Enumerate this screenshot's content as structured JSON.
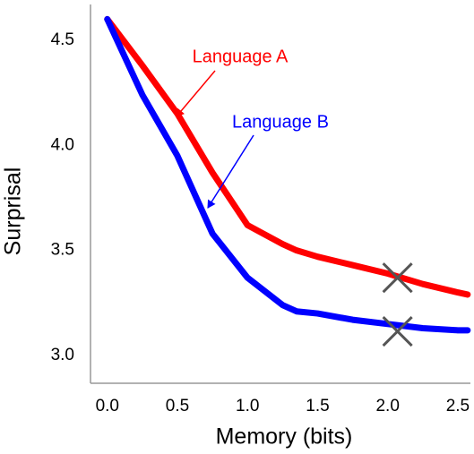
{
  "chart_data": {
    "type": "line",
    "x_label": "Memory (bits)",
    "y_label": "Surprisal",
    "xlim": [
      -0.12,
      2.59
    ],
    "ylim": [
      2.868,
      4.67
    ],
    "xticks": [
      {
        "value": 0,
        "label": "0.0"
      },
      {
        "value": 0.5,
        "label": "0.5"
      },
      {
        "value": 1,
        "label": "1.0"
      },
      {
        "value": 1.5,
        "label": "1.5"
      },
      {
        "value": 2,
        "label": "2.0"
      },
      {
        "value": 2.5,
        "label": "2.5"
      }
    ],
    "yticks": [
      {
        "value": 3,
        "label": "3.0"
      },
      {
        "value": 3.5,
        "label": "3.5"
      },
      {
        "value": 4,
        "label": "4.0"
      },
      {
        "value": 4.5,
        "label": "4.5"
      }
    ],
    "grid": false,
    "x": [
      0,
      0.25,
      0.5,
      0.75,
      1.0,
      1.25,
      1.35,
      1.5,
      1.75,
      2.0,
      2.25,
      2.5,
      2.57
    ],
    "series": [
      {
        "name": "Language A",
        "color": "#ff0000",
        "values": [
          4.6,
          4.38,
          4.15,
          3.87,
          3.62,
          3.53,
          3.5,
          3.47,
          3.43,
          3.39,
          3.34,
          3.3,
          3.29
        ]
      },
      {
        "name": "Language B",
        "color": "#0000ff",
        "values": [
          4.6,
          4.24,
          3.95,
          3.58,
          3.37,
          3.24,
          3.21,
          3.2,
          3.17,
          3.15,
          3.13,
          3.12,
          3.12
        ]
      }
    ],
    "markers": [
      {
        "x": 2.07,
        "y": 3.37
      },
      {
        "x": 2.07,
        "y": 3.115
      }
    ]
  }
}
